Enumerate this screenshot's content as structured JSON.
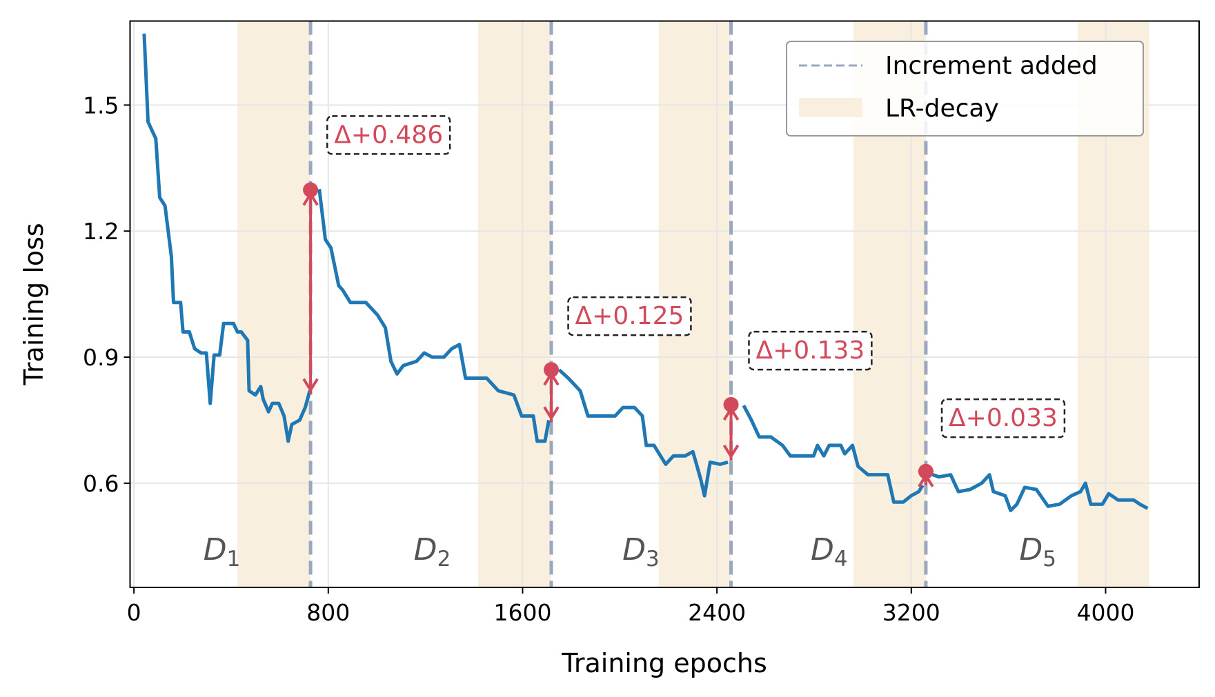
{
  "chart_data": {
    "type": "line",
    "title": "",
    "xlabel": "Training epochs",
    "ylabel": "Training loss",
    "xlim": [
      -16,
      4385
    ],
    "ylim": [
      0.352,
      1.7
    ],
    "xticks": [
      0,
      800,
      1600,
      2400,
      3200,
      4000
    ],
    "yticks": [
      0.6,
      0.9,
      1.2,
      1.5
    ],
    "xtick_labels": [
      "0",
      "800",
      "1600",
      "2400",
      "3200",
      "4000"
    ],
    "ytick_labels": [
      "0.6",
      "0.9",
      "1.2",
      "1.5"
    ],
    "grid": true,
    "legend": {
      "placement": "top-right",
      "entries": [
        "Increment added",
        "LR-decay"
      ]
    },
    "colors": {
      "loss": "#1f77b4",
      "increment": "#99a8bf",
      "lr_decay": "#f8efdf",
      "jump": "#d1495b"
    },
    "lr_decay_spans": [
      [
        426,
        727
      ],
      [
        1417,
        1718
      ],
      [
        2160,
        2458
      ],
      [
        2962,
        3260
      ],
      [
        3885,
        4180
      ]
    ],
    "increments": [
      {
        "x": 727,
        "before": 0.812,
        "after": 1.298,
        "label": "Δ+0.486",
        "label_x": 790,
        "label_y": 1.431
      },
      {
        "x": 1718,
        "before": 0.745,
        "after": 0.87,
        "label": "Δ+0.125",
        "label_x": 1782,
        "label_y": 1.0
      },
      {
        "x": 2458,
        "before": 0.654,
        "after": 0.787,
        "label": "Δ+0.133",
        "label_x": 2526,
        "label_y": 0.918
      },
      {
        "x": 3260,
        "before": 0.595,
        "after": 0.628,
        "label": "Δ+0.033",
        "label_x": 3320,
        "label_y": 0.757
      }
    ],
    "task_labels": [
      {
        "main": "D",
        "sub": "1",
        "x": 362,
        "y": 0.444
      },
      {
        "main": "D",
        "sub": "2",
        "x": 1228,
        "y": 0.444
      },
      {
        "main": "D",
        "sub": "3",
        "x": 2087,
        "y": 0.444
      },
      {
        "main": "D",
        "sub": "4",
        "x": 2862,
        "y": 0.444
      },
      {
        "main": "D",
        "sub": "5",
        "x": 3721,
        "y": 0.444
      }
    ],
    "series": [
      {
        "segments": [
          [
            [
              42,
              1.67
            ],
            [
              58,
              1.46
            ],
            [
              90,
              1.42
            ],
            [
              106,
              1.28
            ],
            [
              128,
              1.26
            ],
            [
              154,
              1.14
            ],
            [
              163,
              1.03
            ],
            [
              192,
              1.03
            ],
            [
              202,
              0.96
            ],
            [
              228,
              0.96
            ],
            [
              250,
              0.92
            ],
            [
              276,
              0.91
            ],
            [
              298,
              0.91
            ],
            [
              314,
              0.79
            ],
            [
              330,
              0.905
            ],
            [
              353,
              0.905
            ],
            [
              369,
              0.98
            ],
            [
              410,
              0.98
            ],
            [
              426,
              0.96
            ],
            [
              442,
              0.96
            ],
            [
              468,
              0.94
            ],
            [
              474,
              0.82
            ],
            [
              500,
              0.81
            ],
            [
              522,
              0.83
            ],
            [
              532,
              0.8
            ],
            [
              554,
              0.77
            ],
            [
              570,
              0.79
            ],
            [
              596,
              0.79
            ],
            [
              618,
              0.76
            ],
            [
              635,
              0.7
            ],
            [
              650,
              0.74
            ],
            [
              682,
              0.75
            ],
            [
              705,
              0.78
            ],
            [
              724,
              0.82
            ]
          ],
          [
            [
              763,
              1.3
            ],
            [
              788,
              1.18
            ],
            [
              811,
              1.16
            ],
            [
              843,
              1.07
            ],
            [
              859,
              1.06
            ],
            [
              891,
              1.03
            ],
            [
              913,
              1.03
            ],
            [
              955,
              1.03
            ],
            [
              1003,
              1.0
            ],
            [
              1035,
              0.97
            ],
            [
              1058,
              0.89
            ],
            [
              1083,
              0.86
            ],
            [
              1109,
              0.88
            ],
            [
              1163,
              0.89
            ],
            [
              1195,
              0.91
            ],
            [
              1228,
              0.9
            ],
            [
              1276,
              0.9
            ],
            [
              1308,
              0.92
            ],
            [
              1340,
              0.93
            ],
            [
              1365,
              0.85
            ],
            [
              1452,
              0.85
            ],
            [
              1500,
              0.82
            ],
            [
              1564,
              0.81
            ],
            [
              1596,
              0.76
            ],
            [
              1644,
              0.76
            ],
            [
              1660,
              0.7
            ],
            [
              1692,
              0.7
            ],
            [
              1708,
              0.75
            ]
          ],
          [
            [
              1750,
              0.87
            ],
            [
              1788,
              0.85
            ],
            [
              1837,
              0.82
            ],
            [
              1869,
              0.76
            ],
            [
              1917,
              0.76
            ],
            [
              1981,
              0.76
            ],
            [
              2013,
              0.78
            ],
            [
              2061,
              0.78
            ],
            [
              2093,
              0.76
            ],
            [
              2109,
              0.69
            ],
            [
              2141,
              0.69
            ],
            [
              2189,
              0.645
            ],
            [
              2221,
              0.665
            ],
            [
              2269,
              0.665
            ],
            [
              2301,
              0.675
            ],
            [
              2333,
              0.61
            ],
            [
              2349,
              0.57
            ],
            [
              2372,
              0.65
            ],
            [
              2413,
              0.645
            ],
            [
              2445,
              0.65
            ]
          ],
          [
            [
              2510,
              0.785
            ],
            [
              2542,
              0.75
            ],
            [
              2574,
              0.71
            ],
            [
              2622,
              0.71
            ],
            [
              2670,
              0.69
            ],
            [
              2702,
              0.665
            ],
            [
              2798,
              0.665
            ],
            [
              2814,
              0.69
            ],
            [
              2840,
              0.665
            ],
            [
              2862,
              0.69
            ],
            [
              2910,
              0.69
            ],
            [
              2926,
              0.67
            ],
            [
              2958,
              0.69
            ],
            [
              2981,
              0.64
            ],
            [
              3022,
              0.62
            ],
            [
              3103,
              0.62
            ],
            [
              3128,
              0.555
            ],
            [
              3167,
              0.555
            ],
            [
              3199,
              0.57
            ],
            [
              3231,
              0.58
            ],
            [
              3247,
              0.595
            ]
          ],
          [
            [
              3266,
              0.625
            ],
            [
              3314,
              0.615
            ],
            [
              3362,
              0.62
            ],
            [
              3394,
              0.58
            ],
            [
              3442,
              0.585
            ],
            [
              3490,
              0.6
            ],
            [
              3522,
              0.62
            ],
            [
              3538,
              0.58
            ],
            [
              3587,
              0.57
            ],
            [
              3609,
              0.535
            ],
            [
              3635,
              0.55
            ],
            [
              3667,
              0.59
            ],
            [
              3715,
              0.585
            ],
            [
              3763,
              0.545
            ],
            [
              3811,
              0.55
            ],
            [
              3859,
              0.57
            ],
            [
              3897,
              0.58
            ],
            [
              3917,
              0.6
            ],
            [
              3939,
              0.55
            ],
            [
              3987,
              0.55
            ],
            [
              4013,
              0.575
            ],
            [
              4051,
              0.56
            ],
            [
              4115,
              0.56
            ],
            [
              4141,
              0.55
            ],
            [
              4173,
              0.54
            ]
          ]
        ]
      }
    ]
  }
}
